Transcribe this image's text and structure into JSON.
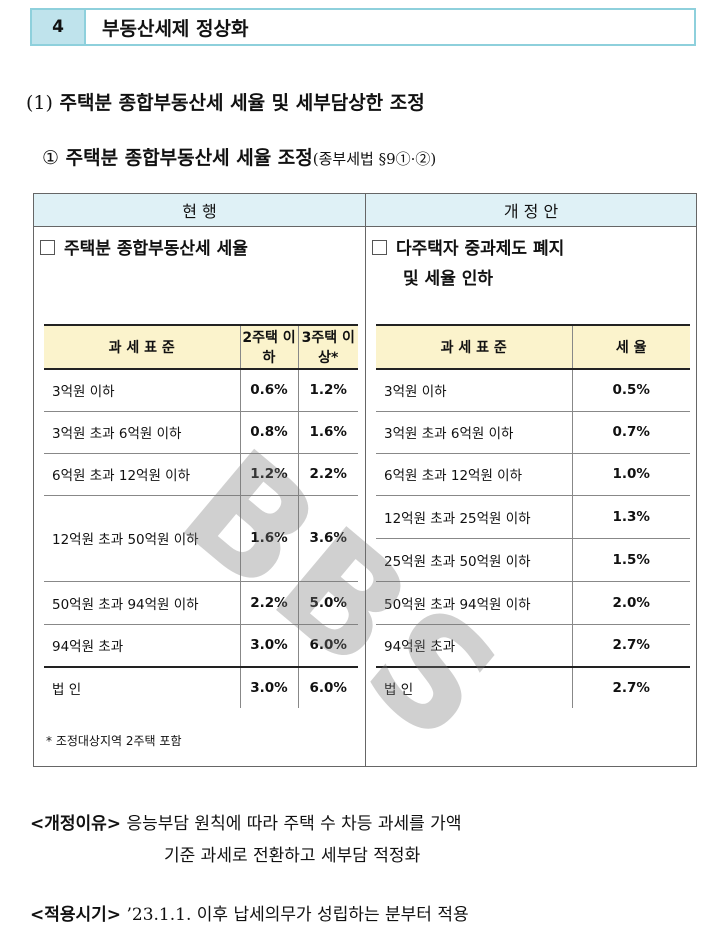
{
  "section": {
    "number": "4",
    "title": "부동산세제 정상화"
  },
  "heading1": {
    "number": "(1)",
    "text": "주택분 종합부동산세 세율 및 세부담상한 조정"
  },
  "heading2": {
    "marker": "①",
    "text": "주택분 종합부동산세 세율 조정",
    "ref": "(종부세법 §9①·②)"
  },
  "current": {
    "header": "현 행",
    "title": "주택분 종합부동산세 세율",
    "columns": [
      "과 세 표 준",
      "2주택 이하",
      "3주택 이상*"
    ],
    "rows": [
      {
        "base": "3억원 이하",
        "two": "0.6%",
        "three": "1.2%"
      },
      {
        "base": "3억원 초과 6억원 이하",
        "two": "0.8%",
        "three": "1.6%"
      },
      {
        "base": "6억원 초과 12억원 이하",
        "two": "1.2%",
        "three": "2.2%"
      },
      {
        "base": "12억원 초과 50억원 이하",
        "two": "1.6%",
        "three": "3.6%"
      },
      {
        "base": "50억원 초과 94억원 이하",
        "two": "2.2%",
        "three": "5.0%"
      },
      {
        "base": "94억원 초과",
        "two": "3.0%",
        "three": "6.0%"
      }
    ],
    "corp": {
      "base": "법 인",
      "two": "3.0%",
      "three": "6.0%"
    },
    "footnote": "* 조정대상지역 2주택 포함"
  },
  "proposal": {
    "header": "개 정 안",
    "title_line1": "다주택자 중과제도 폐지",
    "title_line2": "및 세율 인하",
    "columns": [
      "과 세 표 준",
      "세 율"
    ],
    "rows": [
      {
        "base": "3억원 이하",
        "rate": "0.5%"
      },
      {
        "base": "3억원 초과 6억원 이하",
        "rate": "0.7%"
      },
      {
        "base": "6억원 초과 12억원 이하",
        "rate": "1.0%"
      },
      {
        "base": "12억원 초과 25억원 이하",
        "rate": "1.3%"
      },
      {
        "base": "25억원 초과 50억원 이하",
        "rate": "1.5%"
      },
      {
        "base": "50억원 초과 94억원 이하",
        "rate": "2.0%"
      },
      {
        "base": "94억원 초과",
        "rate": "2.7%"
      }
    ],
    "corp": {
      "base": "법 인",
      "rate": "2.7%"
    }
  },
  "reason": {
    "label": "<개정이유>",
    "line1": "응능부담 원칙에 따라 주택 수 차등 과세를 가액",
    "line2": "기준 과세로 전환하고 세부담 적정화"
  },
  "apply": {
    "label": "<적용시기>",
    "date": "’23.1.1.",
    "text": "이후 납세의무가 성립하는 분부터 적용"
  },
  "watermark": "BBS"
}
